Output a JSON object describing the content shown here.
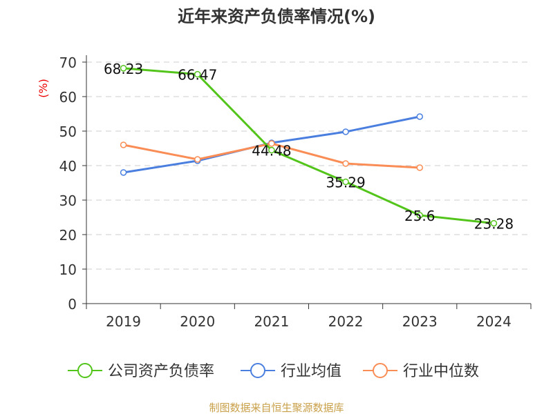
{
  "chart_data": {
    "type": "line",
    "title": "近年来资产负债率情况(%)",
    "ylabel": "(%)",
    "xlabel": "",
    "categories": [
      "2019",
      "2020",
      "2021",
      "2022",
      "2023",
      "2024"
    ],
    "ylim": [
      0,
      70
    ],
    "yticks": [
      "0",
      "10",
      "20",
      "30",
      "40",
      "50",
      "60",
      "70"
    ],
    "grid": true,
    "legend_position": "bottom",
    "series": [
      {
        "name": "公司资产负债率",
        "color": "#52c41a",
        "values": [
          68.23,
          66.47,
          44.48,
          35.29,
          25.6,
          23.28
        ],
        "labels": [
          "68.23",
          "66.47",
          "44.48",
          "35.29",
          "25.6",
          "23.28"
        ]
      },
      {
        "name": "行业均值",
        "color": "#4a7fe0",
        "values": [
          38.0,
          41.4,
          46.6,
          49.8,
          54.2,
          null
        ]
      },
      {
        "name": "行业中位数",
        "color": "#fa8c55",
        "values": [
          46.0,
          41.8,
          46.4,
          40.6,
          39.4,
          null
        ]
      }
    ]
  },
  "source": "制图数据来自恒生聚源数据库"
}
